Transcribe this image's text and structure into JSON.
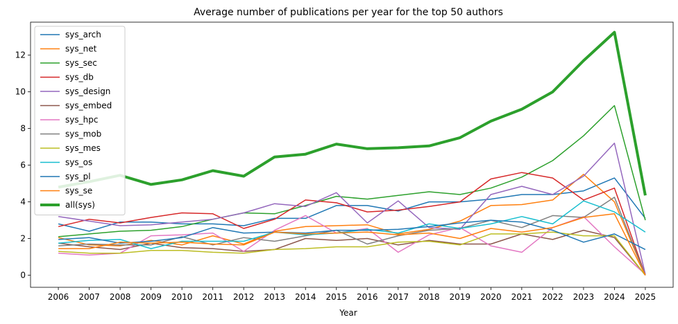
{
  "chart_data": {
    "type": "line",
    "title": "Average number of publications per year for the top 50 authors",
    "xlabel": "Year",
    "ylabel": "",
    "x": [
      "2006",
      "2007",
      "2008",
      "2009",
      "2010",
      "2011",
      "2012",
      "2013",
      "2014",
      "2015",
      "2016",
      "2017",
      "2018",
      "2019",
      "2020",
      "2021",
      "2022",
      "2023",
      "2024",
      "2025"
    ],
    "ylim": [
      -0.66,
      13.8
    ],
    "yticks": [
      0,
      2,
      4,
      6,
      8,
      10,
      12
    ],
    "grid": false,
    "legend": "upper-left",
    "series": [
      {
        "name": "sys_arch",
        "color": "#1f77b4",
        "width": 1.5,
        "values": [
          2.8,
          2.4,
          2.9,
          2.9,
          2.8,
          2.8,
          2.7,
          3.1,
          3.1,
          3.8,
          3.8,
          3.5,
          4.0,
          4.0,
          4.15,
          4.4,
          4.4,
          4.6,
          5.3,
          3.1
        ]
      },
      {
        "name": "sys_net",
        "color": "#ff7f0e",
        "width": 1.5,
        "values": [
          2.05,
          1.65,
          1.6,
          1.9,
          1.65,
          2.15,
          1.7,
          2.4,
          2.65,
          2.7,
          2.75,
          2.25,
          2.5,
          2.95,
          3.8,
          3.85,
          4.1,
          5.5,
          4.0,
          0.0
        ]
      },
      {
        "name": "sys_sec",
        "color": "#2ca02c",
        "width": 1.5,
        "values": [
          2.1,
          2.25,
          2.4,
          2.45,
          2.65,
          3.05,
          3.4,
          3.35,
          3.8,
          4.3,
          4.15,
          4.35,
          4.55,
          4.4,
          4.75,
          5.35,
          6.25,
          7.6,
          9.25,
          3.0
        ]
      },
      {
        "name": "sys_db",
        "color": "#d62728",
        "width": 1.5,
        "values": [
          2.65,
          3.05,
          2.85,
          3.15,
          3.4,
          3.35,
          2.55,
          3.05,
          4.1,
          3.95,
          3.45,
          3.55,
          3.75,
          4.0,
          5.25,
          5.6,
          5.3,
          4.1,
          4.75,
          0.0
        ]
      },
      {
        "name": "sys_design",
        "color": "#9467bd",
        "width": 1.5,
        "values": [
          3.2,
          2.95,
          2.7,
          2.75,
          2.9,
          3.05,
          3.4,
          3.9,
          3.75,
          4.5,
          2.85,
          4.05,
          2.6,
          2.5,
          4.4,
          4.85,
          4.4,
          5.4,
          7.2,
          0.05
        ]
      },
      {
        "name": "sys_embed",
        "color": "#8c564b",
        "width": 1.5,
        "values": [
          1.75,
          1.55,
          1.4,
          1.75,
          1.5,
          1.45,
          1.3,
          1.4,
          2.0,
          1.9,
          2.0,
          1.65,
          1.9,
          1.7,
          1.7,
          2.25,
          1.95,
          2.45,
          2.05,
          0.0
        ]
      },
      {
        "name": "sys_hpc",
        "color": "#e377c2",
        "width": 1.5,
        "values": [
          1.2,
          1.1,
          1.2,
          2.15,
          2.2,
          2.3,
          1.3,
          2.45,
          3.25,
          2.3,
          2.55,
          1.25,
          2.2,
          2.6,
          1.6,
          1.25,
          2.6,
          3.2,
          1.55,
          0.05
        ]
      },
      {
        "name": "sys_mob",
        "color": "#7f7f7f",
        "width": 1.5,
        "values": [
          1.6,
          1.7,
          1.65,
          1.65,
          2.1,
          1.65,
          2.05,
          1.85,
          2.15,
          2.45,
          1.7,
          2.15,
          2.45,
          2.55,
          3.0,
          2.6,
          3.25,
          3.15,
          4.25,
          0.0
        ]
      },
      {
        "name": "sys_mes",
        "color": "#bcbd22",
        "width": 1.5,
        "values": [
          1.3,
          1.2,
          1.2,
          1.35,
          1.35,
          1.25,
          1.2,
          1.4,
          1.45,
          1.55,
          1.55,
          1.8,
          1.85,
          1.65,
          2.25,
          2.25,
          2.35,
          2.15,
          2.15,
          0.0
        ]
      },
      {
        "name": "sys_os",
        "color": "#17becf",
        "width": 1.5,
        "values": [
          1.75,
          1.9,
          1.95,
          1.45,
          1.85,
          1.85,
          1.85,
          2.35,
          2.2,
          2.3,
          2.5,
          2.3,
          2.8,
          2.55,
          2.8,
          3.2,
          2.8,
          4.05,
          3.45,
          2.35
        ]
      },
      {
        "name": "sys_pl",
        "color": "#1f77b4",
        "width": 1.5,
        "values": [
          1.95,
          2.05,
          1.75,
          1.85,
          2.05,
          2.6,
          2.3,
          2.35,
          2.3,
          2.45,
          2.45,
          2.5,
          2.65,
          2.85,
          3.0,
          2.9,
          2.45,
          1.8,
          2.25,
          1.4
        ]
      },
      {
        "name": "sys_se",
        "color": "#ff7f0e",
        "width": 1.5,
        "values": [
          1.45,
          1.45,
          1.8,
          1.75,
          1.8,
          1.7,
          1.65,
          2.35,
          2.25,
          2.3,
          2.35,
          2.2,
          2.3,
          2.0,
          2.55,
          2.35,
          2.6,
          3.15,
          3.35,
          0.0
        ]
      },
      {
        "name": "all(sys)",
        "color": "#2ca02c",
        "width": 4.0,
        "values": [
          4.8,
          5.1,
          5.45,
          4.95,
          5.2,
          5.7,
          5.4,
          6.45,
          6.6,
          7.15,
          6.9,
          6.95,
          7.05,
          7.5,
          8.4,
          9.05,
          10.0,
          11.7,
          13.25,
          4.35
        ]
      }
    ]
  }
}
